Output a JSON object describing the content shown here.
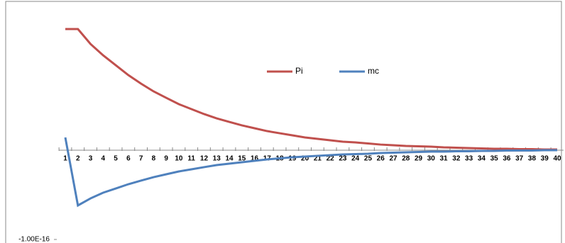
{
  "chart_data": {
    "type": "line",
    "categories": [
      "1",
      "2",
      "3",
      "4",
      "5",
      "6",
      "7",
      "8",
      "9",
      "10",
      "11",
      "12",
      "13",
      "14",
      "15",
      "16",
      "17",
      "18",
      "19",
      "20",
      "21",
      "22",
      "23",
      "24",
      "25",
      "26",
      "27",
      "28",
      "29",
      "30",
      "31",
      "32",
      "33",
      "34",
      "35",
      "36",
      "37",
      "38",
      "39",
      "40"
    ],
    "series": [
      {
        "name": "Pi",
        "color": "#c0504d",
        "values": [
          1.357e-16,
          1.357e-16,
          1.19e-16,
          1.063e-16,
          9.52e-17,
          8.41e-17,
          7.46e-17,
          6.59e-17,
          5.87e-17,
          5.16e-17,
          4.6e-17,
          4.05e-17,
          3.57e-17,
          3.17e-17,
          2.78e-17,
          2.46e-17,
          2.14e-17,
          1.9e-17,
          1.67e-17,
          1.43e-17,
          1.27e-17,
          1.11e-17,
          9.5e-18,
          8.7e-18,
          7.5e-18,
          6.3e-18,
          5.6e-18,
          4.8e-18,
          4.4e-18,
          4e-18,
          3.2e-18,
          2.8e-18,
          2.4e-18,
          2e-18,
          1.6e-18,
          1.6e-18,
          1.2e-18,
          1.2e-18,
          8e-19,
          8e-19
        ]
      },
      {
        "name": "mc",
        "color": "#4f81bd",
        "values": [
          1.43e-17,
          -6.19e-17,
          -5.4e-17,
          -4.76e-17,
          -4.29e-17,
          -3.81e-17,
          -3.41e-17,
          -3.02e-17,
          -2.7e-17,
          -2.38e-17,
          -2.14e-17,
          -1.9e-17,
          -1.67e-17,
          -1.51e-17,
          -1.35e-17,
          -1.19e-17,
          -1.03e-17,
          -9.1e-18,
          -7.9e-18,
          -7.1e-18,
          -6.3e-18,
          -5.6e-18,
          -4.8e-18,
          -4.4e-18,
          -4e-18,
          -3.2e-18,
          -2.8e-18,
          -2.4e-18,
          -2e-18,
          -1.6e-18,
          -1.6e-18,
          -1.2e-18,
          -1.2e-18,
          -8e-19,
          -8e-19,
          -4e-19,
          -4e-19,
          -4e-19,
          0,
          0
        ]
      }
    ],
    "ylim": [
      -1e-16,
      1.5e-16
    ],
    "yticks": [
      {
        "value": -1e-16,
        "label": "-1.00E-16"
      }
    ],
    "legend": "top"
  }
}
